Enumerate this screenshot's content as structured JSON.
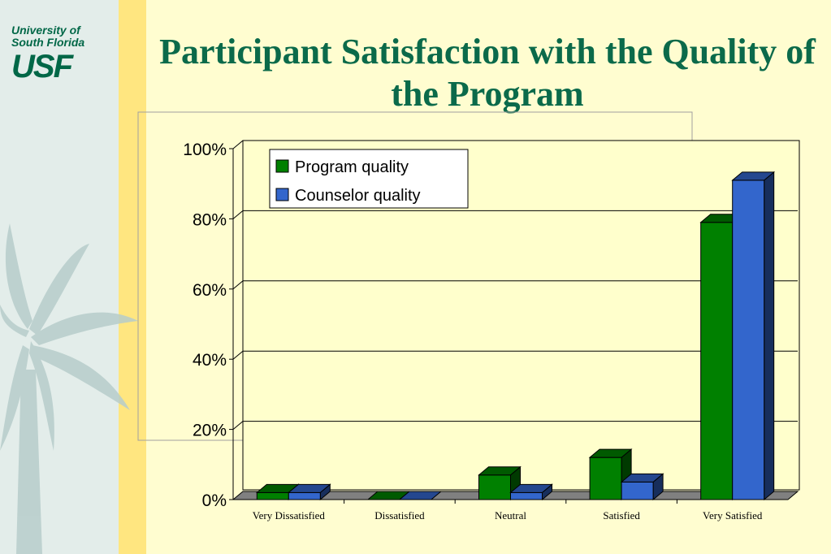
{
  "branding": {
    "logo_line1": "University of",
    "logo_line2": "South Florida",
    "logo_mark": "USF"
  },
  "slide": {
    "title": "Participant Satisfaction with the Quality of the Program"
  },
  "colors": {
    "background": "#FFFDD0",
    "title": "#0B6A4A",
    "program_quality": "#008000",
    "counselor_quality": "#3366CC"
  },
  "chart_data": {
    "type": "bar",
    "categories": [
      "Very Dissatisfied",
      "Dissatisfied",
      "Neutral",
      "Satisfied",
      "Very Satisfied"
    ],
    "series": [
      {
        "name": "Program quality",
        "values": [
          2,
          0,
          7,
          12,
          79
        ],
        "color": "#008000"
      },
      {
        "name": "Counselor quality",
        "values": [
          2,
          0,
          2,
          5,
          91
        ],
        "color": "#3366CC"
      }
    ],
    "y_ticks": [
      "0%",
      "20%",
      "40%",
      "60%",
      "80%",
      "100%"
    ],
    "ylim": [
      0,
      100
    ],
    "grid": true,
    "legend_position": "top-left"
  }
}
